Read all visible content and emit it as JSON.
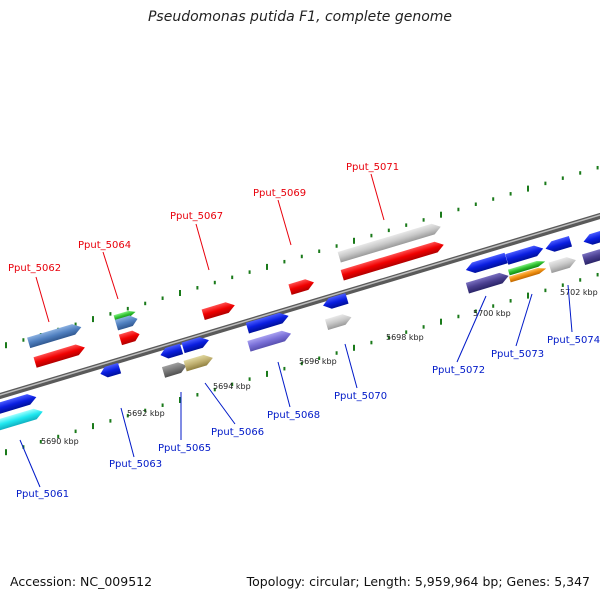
{
  "title": "Pseudomonas putida F1, complete genome",
  "footer": {
    "accession": "Accession: NC_009512",
    "summary": "Topology: circular; Length: 5,959,964 bp; Genes: 5,347"
  },
  "colors": {
    "top_strand_label": "#e8000b",
    "bottom_strand_label": "#0019c8",
    "backbone": "#8c8c8c",
    "tick": "#1a7a1a"
  },
  "scale_ticks": [
    {
      "label": "5690 kbp"
    },
    {
      "label": "5692 kbp"
    },
    {
      "label": "5694 kbp"
    },
    {
      "label": "5696 kbp"
    },
    {
      "label": "5698 kbp"
    },
    {
      "label": "5700 kbp"
    },
    {
      "label": "5702 kbp"
    }
  ],
  "gene_labels": [
    {
      "name": "Pput_5061",
      "strand": "bottom"
    },
    {
      "name": "Pput_5062",
      "strand": "top"
    },
    {
      "name": "Pput_5063",
      "strand": "bottom"
    },
    {
      "name": "Pput_5064",
      "strand": "top"
    },
    {
      "name": "Pput_5065",
      "strand": "bottom"
    },
    {
      "name": "Pput_5066",
      "strand": "bottom"
    },
    {
      "name": "Pput_5067",
      "strand": "top"
    },
    {
      "name": "Pput_5068",
      "strand": "bottom"
    },
    {
      "name": "Pput_5069",
      "strand": "top"
    },
    {
      "name": "Pput_5070",
      "strand": "bottom"
    },
    {
      "name": "Pput_5071",
      "strand": "top"
    },
    {
      "name": "Pput_5072",
      "strand": "bottom"
    },
    {
      "name": "Pput_5073",
      "strand": "bottom"
    },
    {
      "name": "Pput_5074",
      "strand": "bottom"
    }
  ]
}
